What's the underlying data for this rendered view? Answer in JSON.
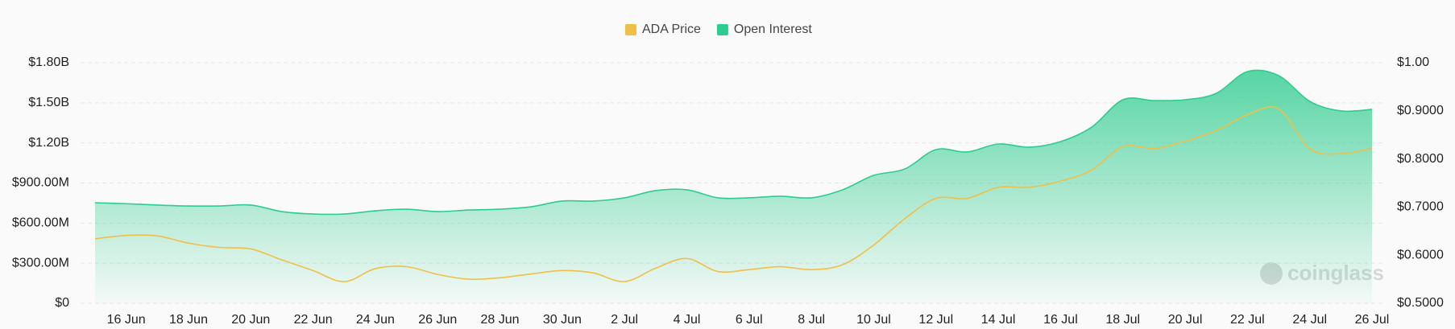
{
  "chart_data": {
    "type": "line",
    "categories": [
      null,
      "16 Jun",
      null,
      "18 Jun",
      null,
      "20 Jun",
      null,
      "22 Jun",
      null,
      "24 Jun",
      null,
      "26 Jun",
      null,
      "28 Jun",
      null,
      "30 Jun",
      null,
      "2 Jul",
      null,
      "4 Jul",
      null,
      "6 Jul",
      null,
      "8 Jul",
      null,
      "10 Jul",
      null,
      "12 Jul",
      null,
      "14 Jul",
      null,
      "16 Jul",
      null,
      "18 Jul",
      null,
      "20 Jul",
      null,
      "22 Jul",
      null,
      "24 Jul",
      null,
      "26 Jul"
    ],
    "series": [
      {
        "name": "ADA Price",
        "color": "#f0bf48",
        "axis": "y2",
        "values": [
          0.634,
          0.641,
          0.64,
          0.625,
          0.616,
          0.613,
          0.59,
          0.568,
          0.545,
          0.572,
          0.576,
          0.56,
          0.55,
          0.553,
          0.561,
          0.568,
          0.563,
          0.545,
          0.573,
          0.593,
          0.566,
          0.57,
          0.576,
          0.57,
          0.58,
          0.621,
          0.676,
          0.718,
          0.718,
          0.741,
          0.741,
          0.754,
          0.777,
          0.826,
          0.822,
          0.837,
          0.859,
          0.892,
          0.904,
          0.821,
          0.811,
          0.822
        ]
      },
      {
        "name": "Open Interest",
        "color": "#2ecc8e",
        "fill": "area",
        "values": [
          752000000,
          745000000,
          735000000,
          728000000,
          728000000,
          735000000,
          686000000,
          668000000,
          668000000,
          692000000,
          704000000,
          686000000,
          698000000,
          704000000,
          722000000,
          765000000,
          765000000,
          789000000,
          843000000,
          849000000,
          789000000,
          789000000,
          801000000,
          789000000,
          849000000,
          957000000,
          1005000000,
          1150000000,
          1132000000,
          1192000000,
          1168000000,
          1210000000,
          1318000000,
          1523000000,
          1517000000,
          1523000000,
          1571000000,
          1734000000,
          1704000000,
          1511000000,
          1439000000,
          1451000000
        ]
      }
    ],
    "ylim": [
      0,
      1800000000
    ],
    "yticks": [
      {
        "value": 0,
        "label": "$0"
      },
      {
        "value": 300000000,
        "label": "$300.00M"
      },
      {
        "value": 600000000,
        "label": "$600.00M"
      },
      {
        "value": 900000000,
        "label": "$900.00M"
      },
      {
        "value": 1200000000,
        "label": "$1.20B"
      },
      {
        "value": 1500000000,
        "label": "$1.50B"
      },
      {
        "value": 1800000000,
        "label": "$1.80B"
      }
    ],
    "y2lim": [
      0.5,
      1.0
    ],
    "y2ticks": [
      {
        "value": 0.5,
        "label": "$0.5000"
      },
      {
        "value": 0.6,
        "label": "$0.6000"
      },
      {
        "value": 0.7,
        "label": "$0.7000"
      },
      {
        "value": 0.8,
        "label": "$0.8000"
      },
      {
        "value": 0.9,
        "label": "$0.9000"
      },
      {
        "value": 1.0,
        "label": "$1.00"
      }
    ],
    "grid": true,
    "legend": "top",
    "watermark": "coinglass"
  }
}
